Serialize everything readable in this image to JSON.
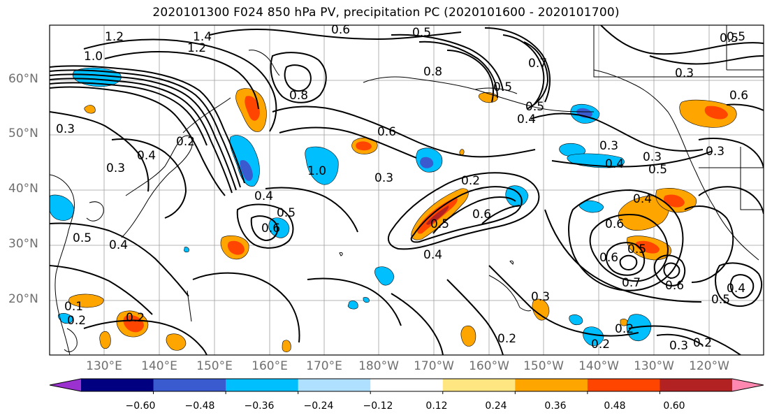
{
  "title": "2020101300 F024 850 hPa PV, precipitation PC (2020101600 - 2020101700)",
  "lat_labels": [
    "60°N",
    "50°N",
    "40°N",
    "30°N",
    "20°N"
  ],
  "lon_labels": [
    "130°E",
    "140°E",
    "150°E",
    "160°E",
    "170°E",
    "180°W",
    "170°W",
    "160°W",
    "150°W",
    "140°W",
    "130°W",
    "120°W"
  ],
  "colorbar": {
    "colors": [
      "#9b32d0",
      "#000080",
      "#3a5bd0",
      "#00bfff",
      "#b0e0ff",
      "#ffffff",
      "#ffe680",
      "#ffa500",
      "#ff4500",
      "#b22222",
      "#ff88b0"
    ],
    "ticks": [
      "−0.60",
      "−0.48",
      "−0.36",
      "−0.24",
      "−0.12",
      "0.12",
      "0.24",
      "0.36",
      "0.48",
      "0.60"
    ]
  },
  "contour_labels": [
    "1.2",
    "1.4",
    "1.2",
    "1.0",
    "0.6",
    "0.5",
    "0.5",
    "0.7",
    "0.5",
    "0.8",
    "0.5",
    "0.4",
    "0.3",
    "0.3",
    "0.4",
    "0.5",
    "0.3",
    "0.6",
    "0.3",
    "0.4",
    "0.2",
    "0.4",
    "0.3",
    "0.8",
    "1.0",
    "0.4",
    "0.5",
    "0.6",
    "0.5",
    "0.4",
    "0.6",
    "0.4",
    "0.6",
    "0.5",
    "0.6",
    "0.7",
    "0.6",
    "0.5",
    "0.4",
    "0.2",
    "0.2",
    "0.3",
    "0.2",
    "0.2",
    "0.3",
    "0.2",
    "0.3",
    "0.5",
    "0.2",
    "0.1",
    "0.2",
    "0.6",
    "0.3",
    "0.5"
  ]
}
